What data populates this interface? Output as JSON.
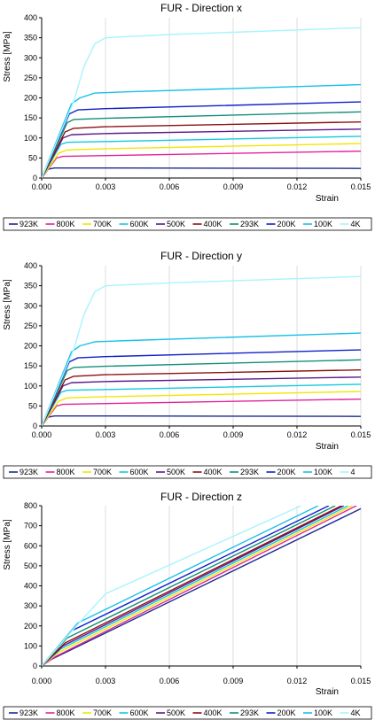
{
  "chart_data": [
    {
      "type": "line",
      "title": "FUR - Direction x",
      "xlabel": "Strain",
      "ylabel": "Stress [MPa]",
      "xlim": [
        0,
        0.015
      ],
      "ylim": [
        0,
        400
      ],
      "xticks": [
        "0.000",
        "0.003",
        "0.006",
        "0.009",
        "0.012",
        "0.015"
      ],
      "yticks": [
        "0",
        "50",
        "100",
        "150",
        "200",
        "250",
        "300",
        "350",
        "400"
      ],
      "grid": "vertical",
      "legend": "bottom",
      "series": [
        {
          "name": "923K",
          "color": "#1c2a8c",
          "points": [
            [
              0,
              0
            ],
            [
              0.0003,
              22
            ],
            [
              0.0006,
              25
            ],
            [
              0.003,
              25
            ],
            [
              0.015,
              24
            ]
          ]
        },
        {
          "name": "800K",
          "color": "#e0249a",
          "points": [
            [
              0,
              0
            ],
            [
              0.0007,
              50
            ],
            [
              0.001,
              54
            ],
            [
              0.003,
              56
            ],
            [
              0.015,
              67
            ]
          ]
        },
        {
          "name": "700K",
          "color": "#f2e600",
          "points": [
            [
              0,
              0
            ],
            [
              0.0008,
              62
            ],
            [
              0.0012,
              70
            ],
            [
              0.003,
              73
            ],
            [
              0.015,
              86
            ]
          ]
        },
        {
          "name": "600K",
          "color": "#14c8e0",
          "points": [
            [
              0,
              0
            ],
            [
              0.0009,
              84
            ],
            [
              0.0012,
              89
            ],
            [
              0.003,
              91
            ],
            [
              0.015,
              104
            ]
          ]
        },
        {
          "name": "500K",
          "color": "#5b1a8c",
          "points": [
            [
              0,
              0
            ],
            [
              0.001,
              100
            ],
            [
              0.0014,
              108
            ],
            [
              0.003,
              111
            ],
            [
              0.015,
              122
            ]
          ]
        },
        {
          "name": "400K",
          "color": "#8c1010",
          "points": [
            [
              0,
              0
            ],
            [
              0.0011,
              115
            ],
            [
              0.0015,
              124
            ],
            [
              0.003,
              128
            ],
            [
              0.015,
              140
            ]
          ]
        },
        {
          "name": "293K",
          "color": "#14907a",
          "points": [
            [
              0,
              0
            ],
            [
              0.0012,
              138
            ],
            [
              0.0015,
              146
            ],
            [
              0.003,
              149
            ],
            [
              0.015,
              165
            ]
          ]
        },
        {
          "name": "200K",
          "color": "#1020c8",
          "points": [
            [
              0,
              0
            ],
            [
              0.0013,
              160
            ],
            [
              0.0017,
              170
            ],
            [
              0.003,
              173
            ],
            [
              0.015,
              190
            ]
          ]
        },
        {
          "name": "100K",
          "color": "#18c0e8",
          "points": [
            [
              0,
              0
            ],
            [
              0.0014,
              185
            ],
            [
              0.0018,
              200
            ],
            [
              0.0025,
              212
            ],
            [
              0.004,
              215
            ],
            [
              0.015,
              233
            ]
          ]
        },
        {
          "name": "4K",
          "color": "#a8f4fc",
          "points": [
            [
              0,
              0
            ],
            [
              0.0015,
              190
            ],
            [
              0.002,
              280
            ],
            [
              0.0025,
              335
            ],
            [
              0.003,
              350
            ],
            [
              0.006,
              358
            ],
            [
              0.015,
              375
            ]
          ]
        }
      ]
    },
    {
      "type": "line",
      "title": "FUR - Direction y",
      "xlabel": "Strain",
      "ylabel": "Stress [MPa]",
      "xlim": [
        0,
        0.015
      ],
      "ylim": [
        0,
        400
      ],
      "xticks": [
        "0.000",
        "0.003",
        "0.006",
        "0.009",
        "0.012",
        "0.015"
      ],
      "yticks": [
        "0",
        "50",
        "100",
        "150",
        "200",
        "250",
        "300",
        "350",
        "400"
      ],
      "grid": "vertical",
      "legend": "bottom",
      "series": [
        {
          "name": "923K",
          "color": "#1c2a8c",
          "points": [
            [
              0,
              0
            ],
            [
              0.0003,
              22
            ],
            [
              0.0006,
              25
            ],
            [
              0.003,
              25
            ],
            [
              0.015,
              24
            ]
          ]
        },
        {
          "name": "800K",
          "color": "#e0249a",
          "points": [
            [
              0,
              0
            ],
            [
              0.0007,
              50
            ],
            [
              0.001,
              54
            ],
            [
              0.003,
              56
            ],
            [
              0.015,
              67
            ]
          ]
        },
        {
          "name": "700K",
          "color": "#f2e600",
          "points": [
            [
              0,
              0
            ],
            [
              0.0008,
              62
            ],
            [
              0.0012,
              70
            ],
            [
              0.003,
              73
            ],
            [
              0.015,
              86
            ]
          ]
        },
        {
          "name": "600K",
          "color": "#14c8e0",
          "points": [
            [
              0,
              0
            ],
            [
              0.0009,
              84
            ],
            [
              0.0012,
              89
            ],
            [
              0.003,
              91
            ],
            [
              0.015,
              104
            ]
          ]
        },
        {
          "name": "500K",
          "color": "#5b1a8c",
          "points": [
            [
              0,
              0
            ],
            [
              0.001,
              100
            ],
            [
              0.0014,
              108
            ],
            [
              0.003,
              111
            ],
            [
              0.015,
              122
            ]
          ]
        },
        {
          "name": "400K",
          "color": "#8c1010",
          "points": [
            [
              0,
              0
            ],
            [
              0.0011,
              115
            ],
            [
              0.0015,
              124
            ],
            [
              0.003,
              128
            ],
            [
              0.015,
              140
            ]
          ]
        },
        {
          "name": "293K",
          "color": "#14907a",
          "points": [
            [
              0,
              0
            ],
            [
              0.0012,
              138
            ],
            [
              0.0015,
              146
            ],
            [
              0.003,
              149
            ],
            [
              0.015,
              165
            ]
          ]
        },
        {
          "name": "200K",
          "color": "#1020c8",
          "points": [
            [
              0,
              0
            ],
            [
              0.0013,
              160
            ],
            [
              0.0017,
              170
            ],
            [
              0.003,
              173
            ],
            [
              0.015,
              190
            ]
          ]
        },
        {
          "name": "100K",
          "color": "#18c0e8",
          "points": [
            [
              0,
              0
            ],
            [
              0.0014,
              185
            ],
            [
              0.0018,
              200
            ],
            [
              0.0025,
              210
            ],
            [
              0.004,
              213
            ],
            [
              0.015,
              232
            ]
          ]
        },
        {
          "name": "4",
          "color": "#a8f4fc",
          "points": [
            [
              0,
              0
            ],
            [
              0.0015,
              190
            ],
            [
              0.002,
              280
            ],
            [
              0.0025,
              335
            ],
            [
              0.003,
              350
            ],
            [
              0.006,
              357
            ],
            [
              0.015,
              373
            ]
          ]
        }
      ]
    },
    {
      "type": "line",
      "title": "FUR - Direction z",
      "xlabel": "Strain",
      "ylabel": "Stress [MPa]",
      "xlim": [
        0,
        0.015
      ],
      "ylim": [
        0,
        800
      ],
      "xticks": [
        "0.000",
        "0.003",
        "0.006",
        "0.009",
        "0.012",
        "0.015"
      ],
      "yticks": [
        "0",
        "100",
        "200",
        "300",
        "400",
        "500",
        "600",
        "700",
        "800"
      ],
      "grid": "vertical",
      "legend": "bottom",
      "series": [
        {
          "name": "923K",
          "color": "#1c2a8c",
          "points": [
            [
              0,
              0
            ],
            [
              0.0003,
              25
            ],
            [
              0.015,
              785
            ]
          ]
        },
        {
          "name": "800K",
          "color": "#e0249a",
          "points": [
            [
              0,
              0
            ],
            [
              0.0007,
              50
            ],
            [
              0.0148,
              800
            ]
          ]
        },
        {
          "name": "700K",
          "color": "#f2e600",
          "points": [
            [
              0,
              0
            ],
            [
              0.0008,
              68
            ],
            [
              0.0146,
              800
            ]
          ]
        },
        {
          "name": "600K",
          "color": "#14c8e0",
          "points": [
            [
              0,
              0
            ],
            [
              0.0009,
              85
            ],
            [
              0.0144,
              800
            ]
          ]
        },
        {
          "name": "500K",
          "color": "#5b1a8c",
          "points": [
            [
              0,
              0
            ],
            [
              0.001,
              100
            ],
            [
              0.0142,
              800
            ]
          ]
        },
        {
          "name": "400K",
          "color": "#8c1010",
          "points": [
            [
              0,
              0
            ],
            [
              0.0011,
              115
            ],
            [
              0.0141,
              800
            ]
          ]
        },
        {
          "name": "293K",
          "color": "#14907a",
          "points": [
            [
              0,
              0
            ],
            [
              0.0012,
              140
            ],
            [
              0.0138,
              800
            ]
          ]
        },
        {
          "name": "200K",
          "color": "#1020c8",
          "points": [
            [
              0,
              0
            ],
            [
              0.0014,
              175
            ],
            [
              0.0135,
              800
            ]
          ]
        },
        {
          "name": "100K",
          "color": "#18c0e8",
          "points": [
            [
              0,
              0
            ],
            [
              0.0017,
              215
            ],
            [
              0.013,
              800
            ]
          ]
        },
        {
          "name": "4K",
          "color": "#a8f4fc",
          "points": [
            [
              0,
              0
            ],
            [
              0.0018,
              220
            ],
            [
              0.003,
              360
            ],
            [
              0.0122,
              800
            ]
          ]
        }
      ]
    }
  ]
}
